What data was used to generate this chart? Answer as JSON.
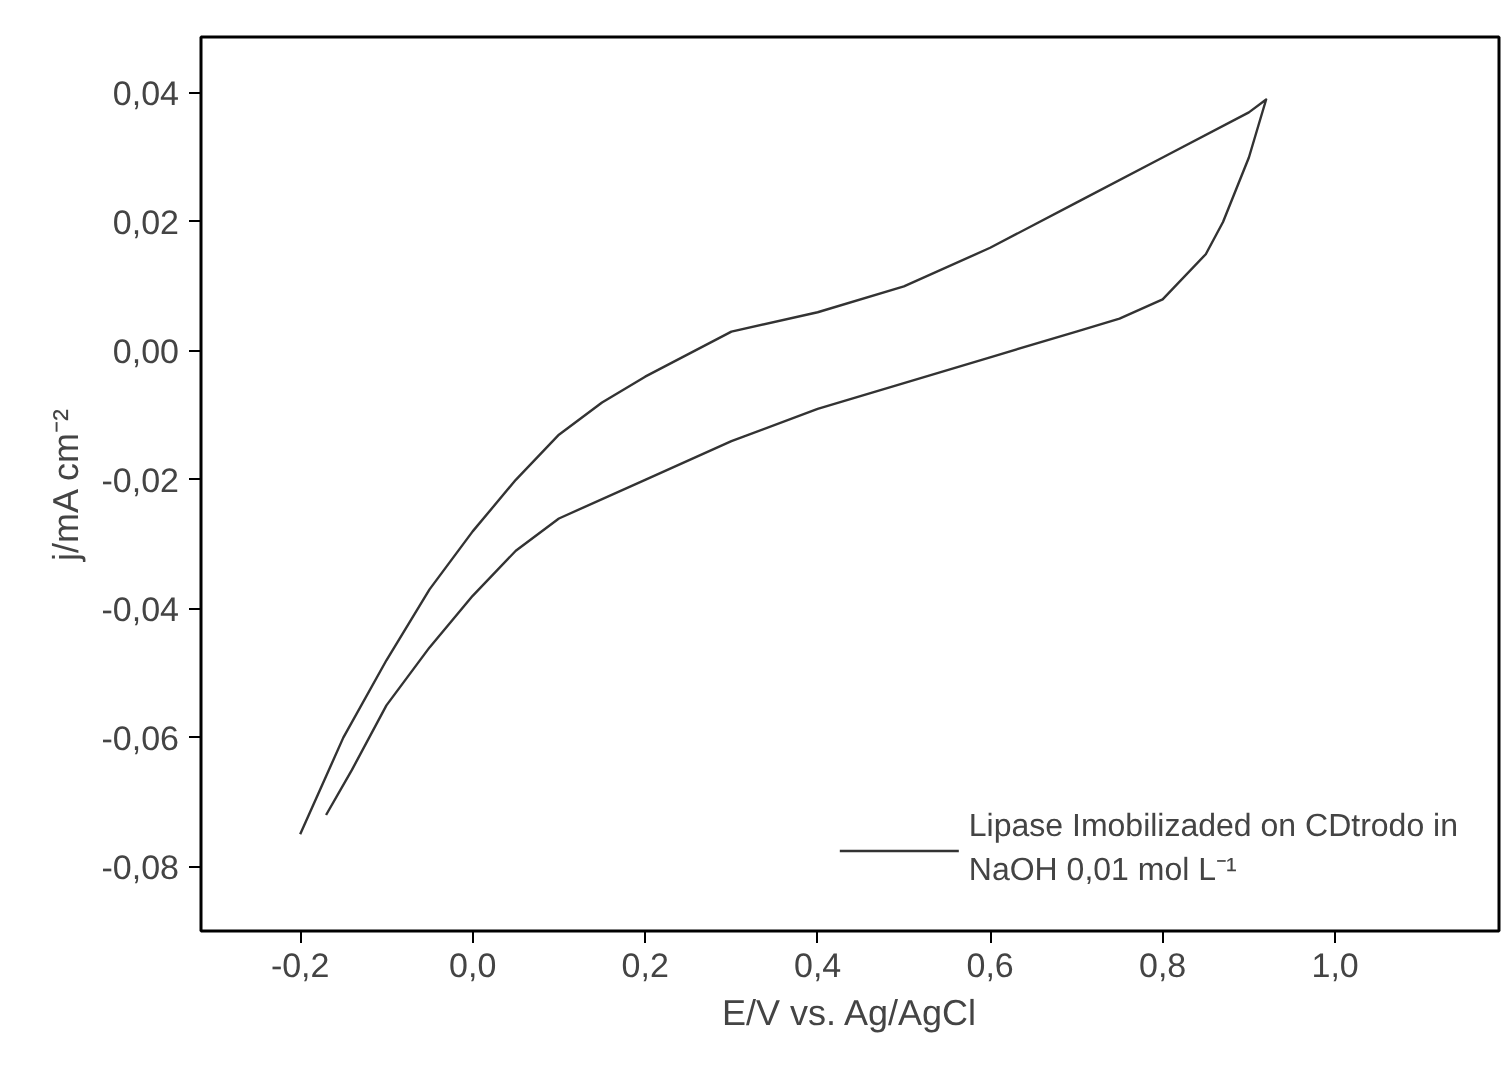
{
  "chart_data": {
    "type": "line",
    "xlabel": "E/V vs. Ag/AgCl",
    "ylabel": "j/mA cm⁻²",
    "series": [
      {
        "name": "Lipase Imobilizaded on CDtrodo in\nNaOH 0,01 mol L⁻¹",
        "color": "#333333",
        "x": [
          -0.2,
          -0.15,
          -0.1,
          -0.05,
          0.0,
          0.05,
          0.1,
          0.15,
          0.2,
          0.3,
          0.4,
          0.5,
          0.6,
          0.7,
          0.8,
          0.9,
          0.92,
          0.9,
          0.87,
          0.85,
          0.8,
          0.75,
          0.7,
          0.6,
          0.5,
          0.4,
          0.3,
          0.2,
          0.1,
          0.05,
          0.0,
          -0.05,
          -0.1,
          -0.14,
          -0.17
        ],
        "values": [
          -0.075,
          -0.06,
          -0.048,
          -0.037,
          -0.028,
          -0.02,
          -0.013,
          -0.008,
          -0.004,
          0.003,
          0.006,
          0.01,
          0.016,
          0.023,
          0.03,
          0.037,
          0.039,
          0.03,
          0.02,
          0.015,
          0.008,
          0.005,
          0.003,
          -0.001,
          -0.005,
          -0.009,
          -0.014,
          -0.02,
          -0.026,
          -0.031,
          -0.038,
          -0.046,
          -0.055,
          -0.065,
          -0.072
        ]
      }
    ],
    "xlim": [
      -0.315,
      1.19
    ],
    "ylim": [
      -0.09,
      0.0487
    ],
    "xticks": [
      {
        "value": -0.2,
        "label": "-0,2"
      },
      {
        "value": 0.0,
        "label": "0,0"
      },
      {
        "value": 0.2,
        "label": "0,2"
      },
      {
        "value": 0.4,
        "label": "0,4"
      },
      {
        "value": 0.6,
        "label": "0,6"
      },
      {
        "value": 0.8,
        "label": "0,8"
      },
      {
        "value": 1.0,
        "label": "1,0"
      }
    ],
    "yticks": [
      {
        "value": -0.08,
        "label": "-0,08"
      },
      {
        "value": -0.06,
        "label": "-0,06"
      },
      {
        "value": -0.04,
        "label": "-0,04"
      },
      {
        "value": -0.02,
        "label": "-0,02"
      },
      {
        "value": 0.0,
        "label": "0,00"
      },
      {
        "value": 0.02,
        "label": "0,02"
      },
      {
        "value": 0.04,
        "label": "0,04"
      }
    ],
    "grid": false,
    "legend": "bottom right",
    "line_style": "solid",
    "marker": "none"
  }
}
